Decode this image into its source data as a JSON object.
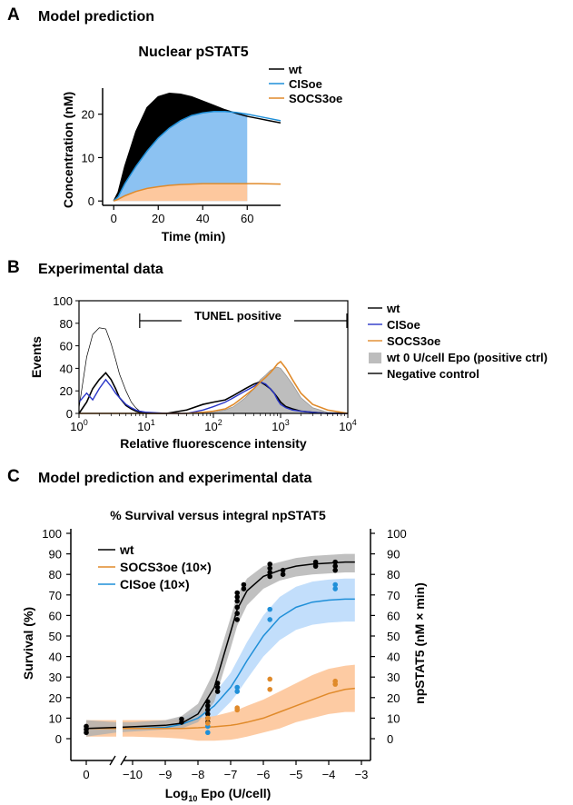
{
  "panels": {
    "a": {
      "letter": "A",
      "title": "Model prediction"
    },
    "b": {
      "letter": "B",
      "title": "Experimental data"
    },
    "c": {
      "letter": "C",
      "title": "Model prediction and experimental data"
    }
  },
  "colors": {
    "wt": "#000000",
    "cis": "#1f8fd8",
    "cis_fill": "#8cc2f2",
    "socs": "#e08a2a",
    "socs_fill": "#fdc89e",
    "gray_fill": "#bdbdbd",
    "blue_hist": "#2a36c8"
  },
  "chart_data": [
    {
      "type": "area",
      "title": "Nuclear pSTAT5",
      "xlabel": "Time (min)",
      "ylabel": "Concentration (nM)",
      "xlim": [
        -5,
        75
      ],
      "ylim": [
        -1,
        26
      ],
      "xticks": [
        0,
        20,
        40,
        60
      ],
      "yticks": [
        0,
        10,
        20
      ],
      "legend": [
        "wt",
        "CISoe",
        "SOCS3oe"
      ],
      "legend_position": "top-right",
      "x": [
        0,
        2,
        5,
        10,
        15,
        20,
        25,
        30,
        35,
        40,
        45,
        50,
        55,
        60,
        65,
        70,
        75
      ],
      "series": [
        {
          "name": "wt",
          "values": [
            0,
            2,
            8,
            16,
            21.5,
            24,
            24.8,
            24.6,
            24,
            23,
            22,
            21,
            20.2,
            19.5,
            19,
            18.5,
            18
          ]
        },
        {
          "name": "CISoe",
          "values": [
            0,
            1,
            4,
            8,
            11.5,
            14.5,
            16.8,
            18.5,
            19.7,
            20.3,
            20.6,
            20.6,
            20.4,
            20,
            19.5,
            19,
            18.5
          ]
        },
        {
          "name": "SOCS3oe",
          "values": [
            0,
            0.4,
            1.2,
            2.2,
            2.9,
            3.3,
            3.6,
            3.8,
            3.9,
            4,
            4,
            4,
            4,
            4,
            4,
            3.95,
            3.9
          ]
        }
      ],
      "shaded_until": 60
    },
    {
      "type": "line",
      "xlabel": "Relative fluorescence intensity",
      "ylabel": "Events",
      "xscale": "log",
      "xlim": [
        1,
        10000
      ],
      "ylim": [
        0,
        100
      ],
      "xtick_labels": [
        "10^0",
        "10^1",
        "10^2",
        "10^3",
        "10^4"
      ],
      "yticks": [
        0,
        20,
        40,
        60,
        80,
        100
      ],
      "annotation": "TUNEL positive",
      "gate_range": [
        8,
        10000
      ],
      "legend": [
        "wt",
        "CISoe",
        "SOCS3oe",
        "wt 0 U/cell Epo (positive ctrl)",
        "Negative control"
      ],
      "legend_position": "right",
      "x": [
        1,
        1.3,
        1.6,
        2,
        2.5,
        3,
        3.5,
        4,
        5,
        6,
        7,
        8,
        10,
        20,
        40,
        70,
        100,
        150,
        200,
        300,
        400,
        500,
        600,
        700,
        800,
        900,
        1000,
        1200,
        1500,
        2000,
        3000,
        5000,
        10000
      ],
      "series": [
        {
          "name": "wt",
          "values": [
            0,
            10,
            22,
            30,
            36,
            30,
            22,
            14,
            7,
            4,
            2,
            1,
            0,
            0,
            3,
            8,
            10,
            12,
            16,
            22,
            26,
            28,
            25,
            22,
            18,
            14,
            10,
            6,
            4,
            2,
            1,
            0,
            0
          ]
        },
        {
          "name": "CISoe",
          "values": [
            10,
            18,
            12,
            22,
            30,
            24,
            18,
            14,
            8,
            5,
            3,
            2,
            1,
            0,
            0,
            3,
            6,
            10,
            14,
            20,
            24,
            28,
            26,
            22,
            18,
            12,
            8,
            5,
            3,
            2,
            1,
            0,
            0
          ]
        },
        {
          "name": "SOCS3oe",
          "values": [
            0,
            0,
            0,
            0,
            0,
            0,
            0,
            0,
            0,
            0,
            0,
            0,
            0,
            0,
            0,
            1,
            2,
            4,
            8,
            16,
            22,
            28,
            32,
            36,
            40,
            44,
            46,
            40,
            30,
            18,
            8,
            3,
            0
          ]
        },
        {
          "name": "wt 0 U/cell Epo (positive ctrl)",
          "values": [
            0,
            0,
            0,
            0,
            0,
            0,
            0,
            0,
            0,
            0,
            0,
            0,
            0,
            0,
            0,
            0,
            1,
            3,
            6,
            14,
            22,
            30,
            34,
            38,
            40,
            41,
            40,
            34,
            26,
            14,
            5,
            1,
            0
          ]
        },
        {
          "name": "Negative control",
          "values": [
            5,
            50,
            70,
            76,
            75,
            62,
            48,
            35,
            20,
            10,
            5,
            2,
            1,
            0,
            0,
            0,
            0,
            0,
            0,
            0,
            0,
            0,
            0,
            0,
            0,
            0,
            0,
            0,
            0,
            0,
            0,
            0,
            0
          ]
        }
      ]
    },
    {
      "type": "line",
      "title": "% Survival versus integral npSTAT5",
      "xlabel": "Log10 Epo (U/cell)",
      "ylabel": "Survival (%)",
      "ylabel_right": "npSTAT5 (nM × min)",
      "xticks": [
        0,
        -10,
        -9,
        -8,
        -7,
        -6,
        -5,
        -4,
        -3
      ],
      "yticks": [
        0,
        10,
        20,
        30,
        40,
        50,
        60,
        70,
        80,
        90,
        100
      ],
      "ylim": [
        -5,
        100
      ],
      "axis_break": true,
      "legend": [
        "wt",
        "SOCS3oe (10×)",
        "CISoe (10×)"
      ],
      "legend_position": "top-left",
      "x": [
        0,
        -10.5,
        -10,
        -9,
        -8.5,
        -8,
        -7.5,
        -7,
        -6.8,
        -6.5,
        -6,
        -5.5,
        -5,
        -4.5,
        -4,
        -3.5,
        -3.2
      ],
      "series": [
        {
          "name": "wt",
          "values": [
            5,
            5.5,
            5.8,
            6.5,
            7.5,
            12,
            25,
            52,
            63,
            72,
            79,
            82,
            84,
            85,
            85.5,
            86,
            86
          ],
          "band_low": [
            1,
            3,
            3.5,
            4.5,
            5,
            8,
            18,
            44,
            55,
            65,
            73,
            77,
            79,
            80,
            80.5,
            81,
            81
          ],
          "band_high": [
            9,
            8,
            8,
            9,
            11,
            17,
            33,
            59,
            70,
            78,
            84,
            86,
            88,
            89,
            89.5,
            90,
            90
          ]
        },
        {
          "name": "SOCS3oe (10×)",
          "values": [
            5,
            5,
            5,
            5,
            5,
            5.3,
            5.8,
            6.5,
            7,
            8,
            10,
            13,
            16,
            19,
            22,
            24,
            24.5
          ],
          "band_low": [
            1,
            1,
            1,
            0.5,
            0,
            -1,
            -1,
            -0.5,
            0,
            1,
            3,
            5,
            8,
            10,
            12,
            13,
            13
          ],
          "band_high": [
            9,
            9,
            9,
            9,
            9.5,
            10,
            11,
            13,
            14,
            16,
            19,
            23,
            27,
            31,
            34,
            35.5,
            36
          ]
        },
        {
          "name": "CISoe (10×)",
          "values": [
            5,
            5,
            5,
            5.5,
            7,
            10,
            16,
            25,
            30,
            38,
            50,
            59,
            64,
            66.5,
            67.5,
            68,
            68
          ],
          "band_low": [
            1,
            2,
            2,
            2.5,
            3,
            5,
            10,
            18,
            22,
            29,
            40,
            48,
            53,
            55.5,
            56.5,
            57,
            57
          ],
          "band_high": [
            9,
            8,
            8,
            8.5,
            10,
            14,
            22,
            32,
            38,
            47,
            60,
            69,
            74,
            76.5,
            77.5,
            78,
            78
          ]
        }
      ],
      "points": [
        {
          "series": "wt",
          "x": 0,
          "y": 3
        },
        {
          "series": "wt",
          "x": 0,
          "y": 4.5
        },
        {
          "series": "wt",
          "x": 0,
          "y": 6
        },
        {
          "series": "wt",
          "x": -8.5,
          "y": 8
        },
        {
          "series": "wt",
          "x": -8.5,
          "y": 9.5
        },
        {
          "series": "wt",
          "x": -7.7,
          "y": 8
        },
        {
          "series": "wt",
          "x": -7.7,
          "y": 10
        },
        {
          "series": "wt",
          "x": -7.7,
          "y": 12
        },
        {
          "series": "wt",
          "x": -7.7,
          "y": 14
        },
        {
          "series": "wt",
          "x": -7.7,
          "y": 16
        },
        {
          "series": "wt",
          "x": -7.7,
          "y": 18
        },
        {
          "series": "wt",
          "x": -7.4,
          "y": 23
        },
        {
          "series": "wt",
          "x": -7.4,
          "y": 25
        },
        {
          "series": "wt",
          "x": -7.4,
          "y": 27
        },
        {
          "series": "wt",
          "x": -6.8,
          "y": 58
        },
        {
          "series": "wt",
          "x": -6.8,
          "y": 61
        },
        {
          "series": "wt",
          "x": -6.8,
          "y": 64
        },
        {
          "series": "wt",
          "x": -6.8,
          "y": 67
        },
        {
          "series": "wt",
          "x": -6.8,
          "y": 69
        },
        {
          "series": "wt",
          "x": -6.8,
          "y": 71
        },
        {
          "series": "wt",
          "x": -6.6,
          "y": 73
        },
        {
          "series": "wt",
          "x": -6.6,
          "y": 75
        },
        {
          "series": "wt",
          "x": -5.8,
          "y": 79
        },
        {
          "series": "wt",
          "x": -5.8,
          "y": 81
        },
        {
          "series": "wt",
          "x": -5.8,
          "y": 83
        },
        {
          "series": "wt",
          "x": -5.8,
          "y": 85
        },
        {
          "series": "wt",
          "x": -5.4,
          "y": 80
        },
        {
          "series": "wt",
          "x": -5.4,
          "y": 82
        },
        {
          "series": "wt",
          "x": -4.4,
          "y": 84
        },
        {
          "series": "wt",
          "x": -4.4,
          "y": 86
        },
        {
          "series": "wt",
          "x": -3.8,
          "y": 82
        },
        {
          "series": "wt",
          "x": -3.8,
          "y": 84
        },
        {
          "series": "wt",
          "x": -3.8,
          "y": 86
        },
        {
          "series": "CISoe (10×)",
          "x": -7.7,
          "y": 3
        },
        {
          "series": "CISoe (10×)",
          "x": -7.7,
          "y": 6
        },
        {
          "series": "CISoe (10×)",
          "x": -6.8,
          "y": 23
        },
        {
          "series": "CISoe (10×)",
          "x": -6.8,
          "y": 25
        },
        {
          "series": "CISoe (10×)",
          "x": -5.8,
          "y": 58
        },
        {
          "series": "CISoe (10×)",
          "x": -5.8,
          "y": 63
        },
        {
          "series": "CISoe (10×)",
          "x": -3.8,
          "y": 73
        },
        {
          "series": "CISoe (10×)",
          "x": -3.8,
          "y": 75
        },
        {
          "series": "SOCS3oe (10×)",
          "x": -7.7,
          "y": 7.5
        },
        {
          "series": "SOCS3oe (10×)",
          "x": -7.7,
          "y": 10
        },
        {
          "series": "SOCS3oe (10×)",
          "x": -6.8,
          "y": 14
        },
        {
          "series": "SOCS3oe (10×)",
          "x": -6.8,
          "y": 15
        },
        {
          "series": "SOCS3oe (10×)",
          "x": -5.8,
          "y": 24
        },
        {
          "series": "SOCS3oe (10×)",
          "x": -5.8,
          "y": 29
        },
        {
          "series": "SOCS3oe (10×)",
          "x": -3.8,
          "y": 26.5
        },
        {
          "series": "SOCS3oe (10×)",
          "x": -3.8,
          "y": 28
        }
      ]
    }
  ]
}
